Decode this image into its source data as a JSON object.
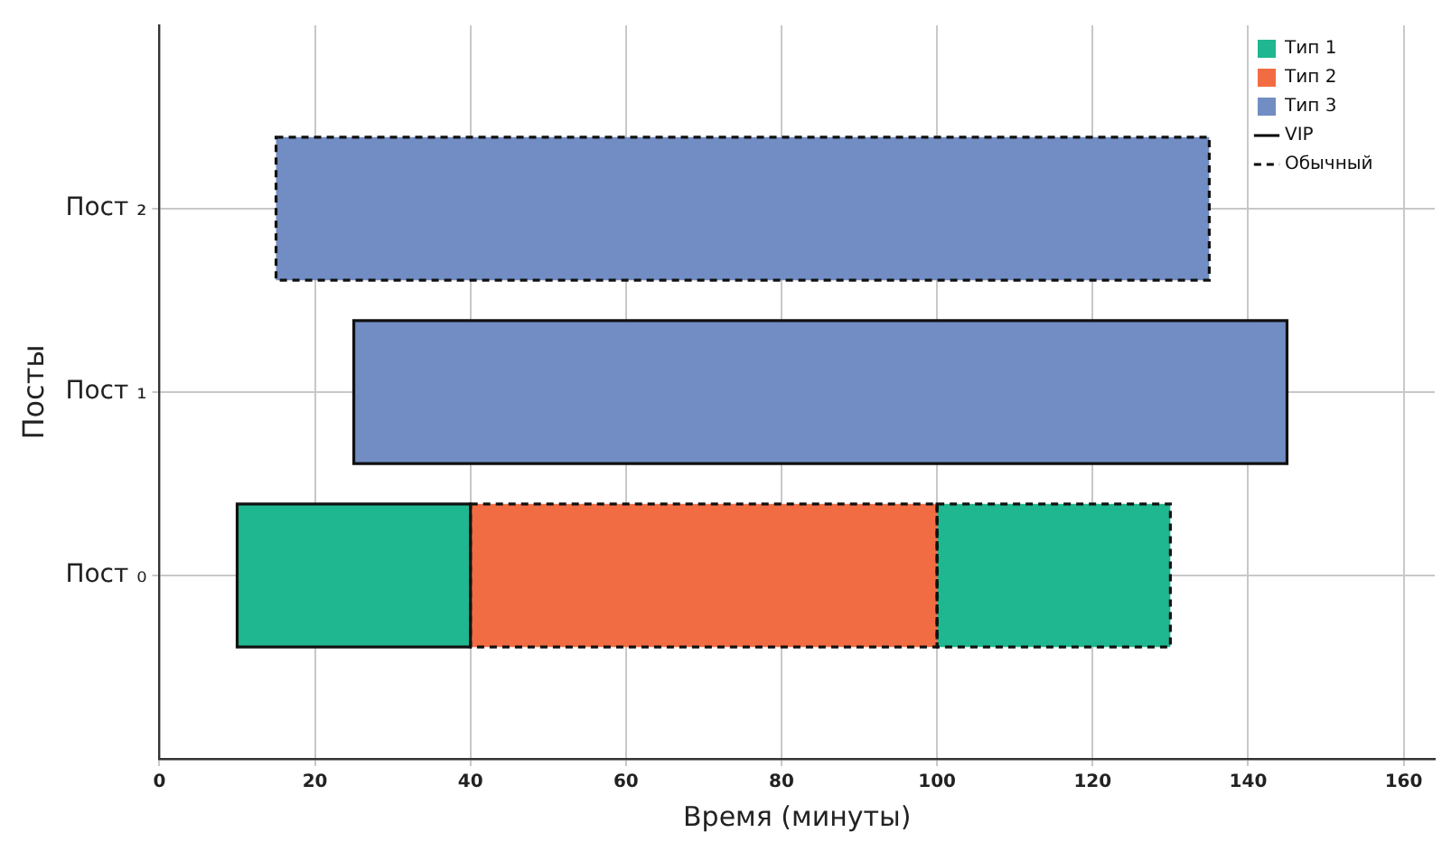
{
  "chart_data": {
    "type": "bar",
    "orientation": "horizontal",
    "xlabel": "Время (минуты)",
    "ylabel": "Посты",
    "categories": [
      "Пост ₂",
      "Пост ₁",
      "Пост ₀"
    ],
    "xlim": [
      0,
      164
    ],
    "xticks": [
      0,
      20,
      40,
      60,
      80,
      100,
      120,
      140,
      160
    ],
    "grid": true,
    "legend": "top right",
    "series": [
      {
        "name": "Тип 1",
        "color": "#1fb78f",
        "values": [
          null,
          null,
          30
        ],
        "base": [
          null,
          null,
          10
        ],
        "line_style": "solid"
      },
      {
        "name": "Тип 2",
        "color": "#f26c43",
        "values": [
          null,
          null,
          60
        ],
        "base": [
          null,
          null,
          40
        ],
        "line_style": "dashed"
      },
      {
        "color": "#1fb78f",
        "values": [
          null,
          null,
          30
        ],
        "base": [
          null,
          null,
          100
        ],
        "line_style": "dashed"
      },
      {
        "name": "Тип 3",
        "color": "#718dc3",
        "values": [
          null,
          120,
          null
        ],
        "base": [
          null,
          25,
          null
        ],
        "line_style": "solid"
      },
      {
        "color": "#718dc3",
        "values": [
          120,
          null,
          null
        ],
        "base": [
          15,
          null,
          null
        ],
        "line_style": "dashed"
      },
      {
        "name": "VIP",
        "type": "line",
        "color": "#000000",
        "values": [
          null,
          null,
          null
        ],
        "line_style": "solid"
      },
      {
        "name": "Обычный",
        "type": "line",
        "color": "#000000",
        "values": [
          null,
          null,
          null
        ],
        "line_style": "dashed"
      }
    ]
  }
}
